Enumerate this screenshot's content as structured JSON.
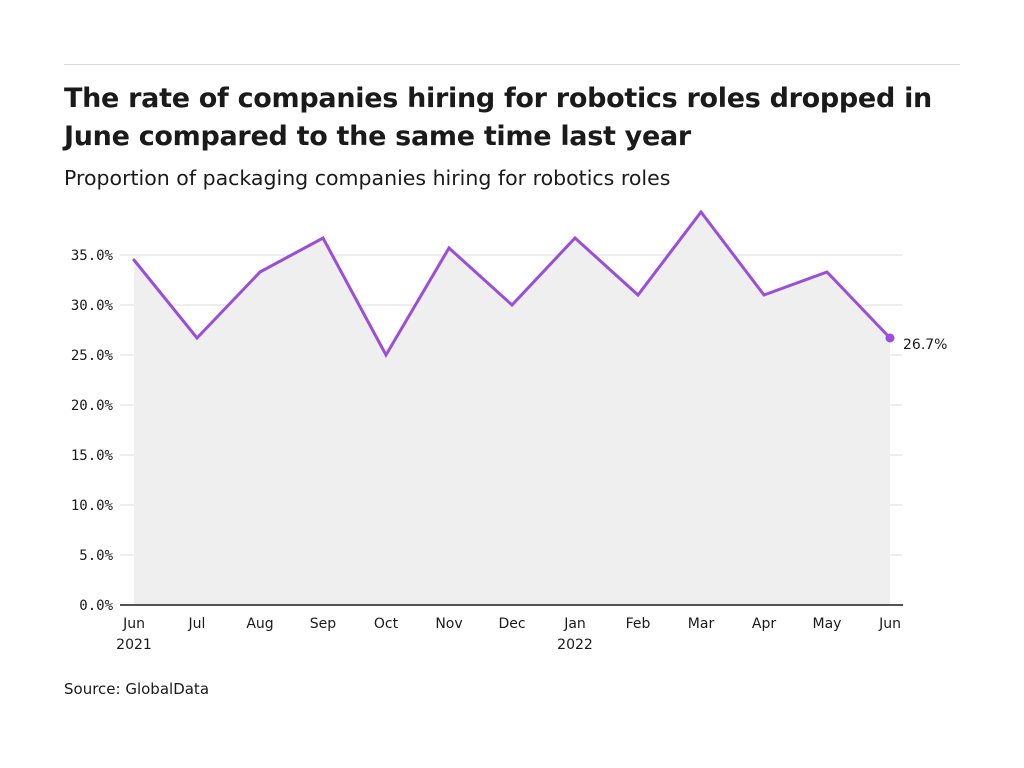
{
  "header": {
    "title": "The rate of companies hiring for robotics roles dropped in June compared to the same time last year",
    "subtitle": "Proportion of packaging companies hiring for robotics roles"
  },
  "footer": {
    "source": "Source: GlobalData"
  },
  "colors": {
    "line": "#9b4ddb",
    "area": "#efefef",
    "grid": "#dddddd",
    "axis": "#1a1a1a"
  },
  "chart_data": {
    "type": "line",
    "title": "The rate of companies hiring for robotics roles dropped in June compared to the same time last year",
    "subtitle": "Proportion of packaging companies hiring for robotics roles",
    "xlabel": "",
    "ylabel": "",
    "categories": [
      "Jun",
      "Jul",
      "Aug",
      "Sep",
      "Oct",
      "Nov",
      "Dec",
      "Jan",
      "Feb",
      "Mar",
      "Apr",
      "May",
      "Jun"
    ],
    "category_sublabels": [
      "2021",
      "",
      "",
      "",
      "",
      "",
      "",
      "2022",
      "",
      "",
      "",
      "",
      ""
    ],
    "series": [
      {
        "values": [
          34.5,
          26.7,
          33.3,
          36.7,
          25.0,
          35.7,
          30.0,
          36.7,
          31.0,
          39.3,
          31.0,
          33.3,
          26.7
        ]
      }
    ],
    "ylim": [
      0,
      40
    ],
    "yticks": [
      0,
      5,
      10,
      15,
      20,
      25,
      30,
      35
    ],
    "ytick_labels": [
      "0.0%",
      "5.0%",
      "10.0%",
      "15.0%",
      "20.0%",
      "25.0%",
      "30.0%",
      "35.0%"
    ],
    "end_label": "26.7%",
    "grid": true,
    "area_fill": true
  }
}
